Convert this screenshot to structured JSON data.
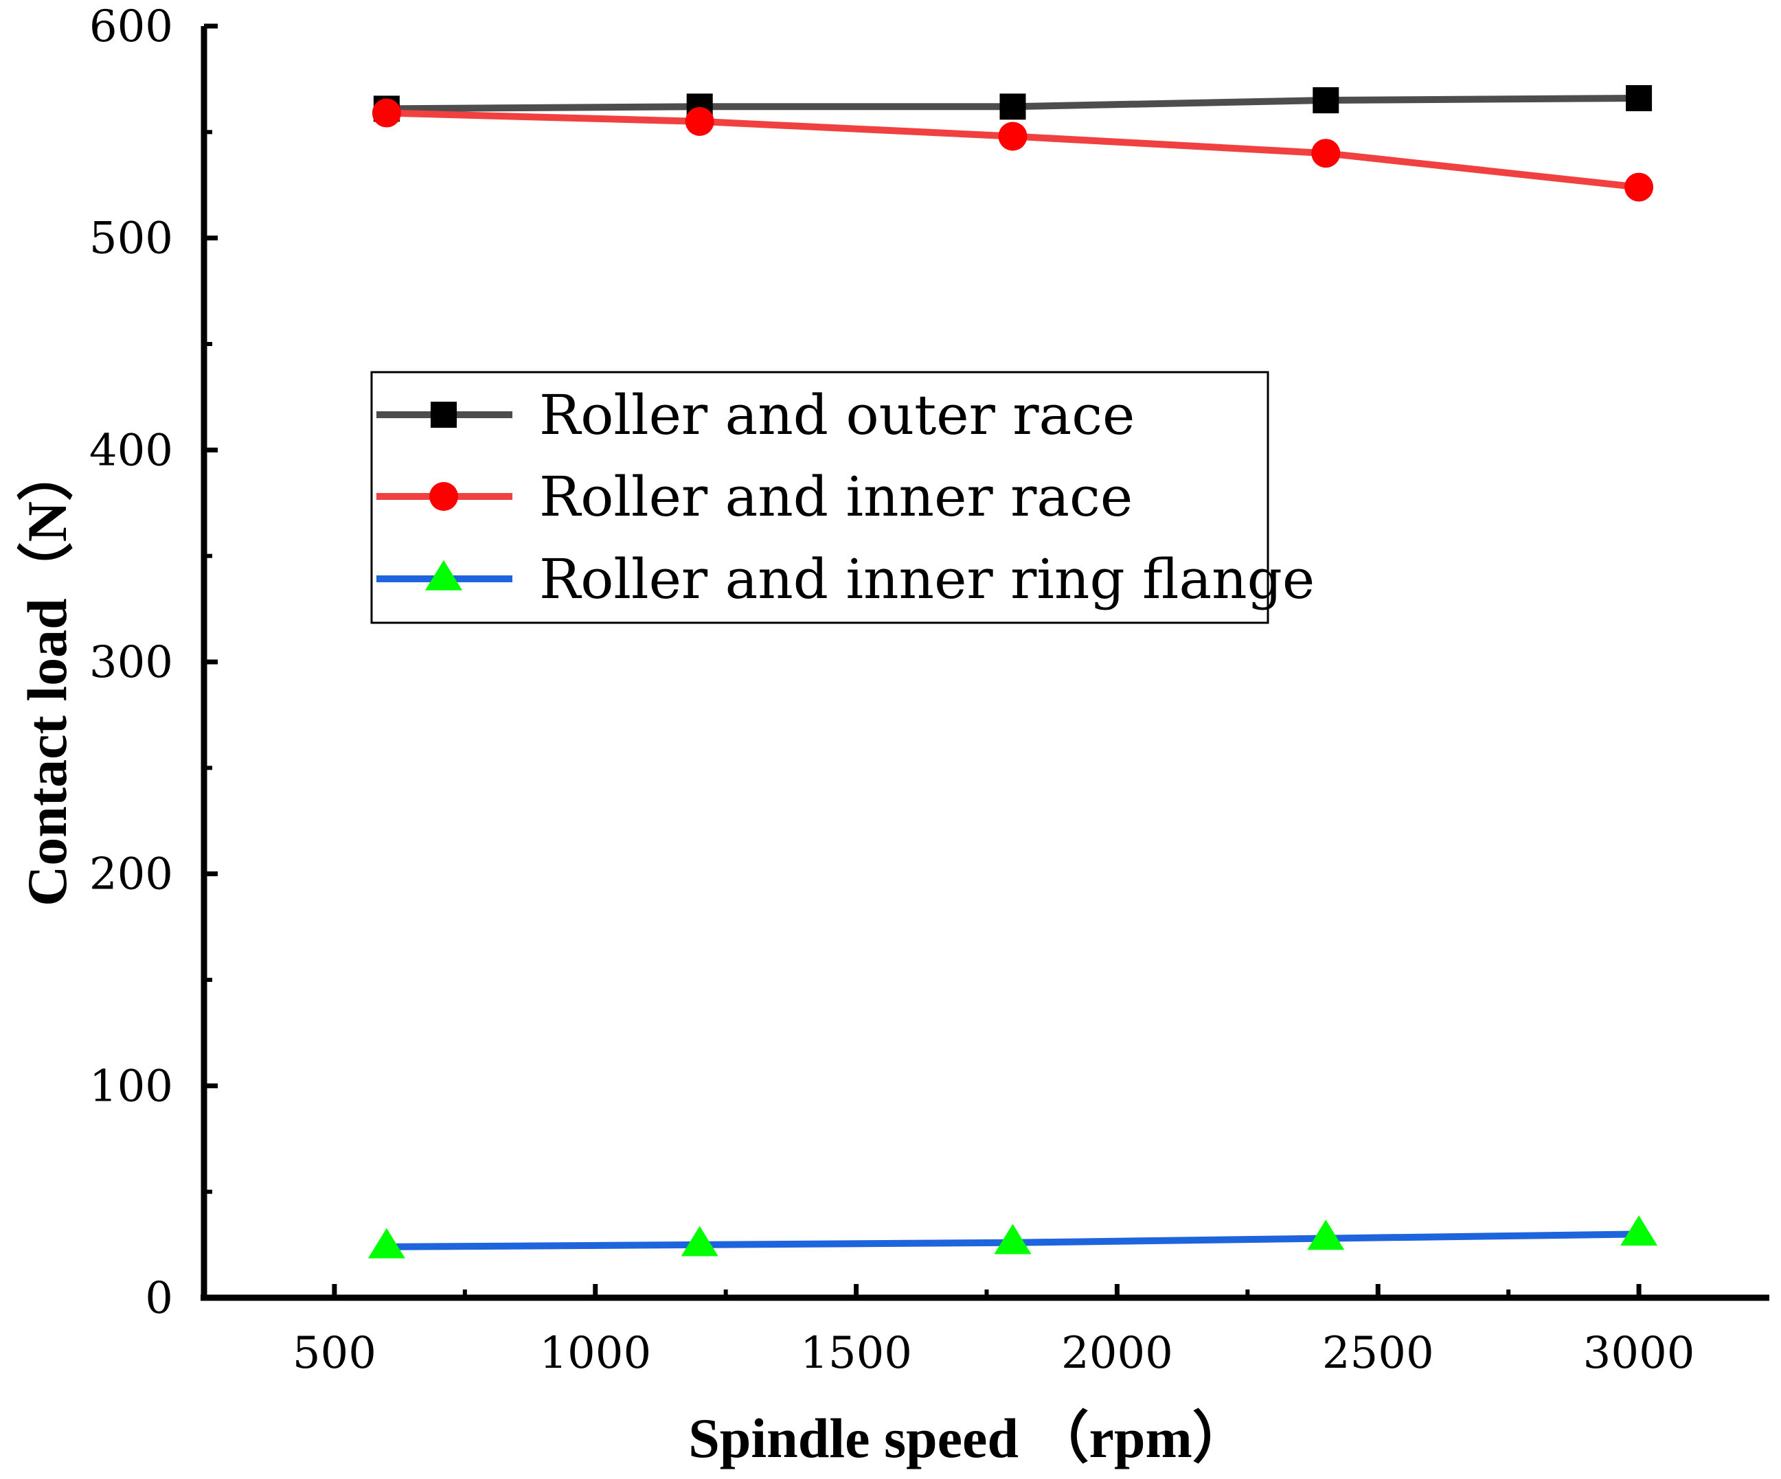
{
  "chart_data": {
    "type": "line",
    "title": "",
    "xlabel": "Spindle speed （rpm）",
    "ylabel": "Contact load（N）",
    "xlim": [
      250,
      3250
    ],
    "ylim": [
      0,
      600
    ],
    "x_ticks": [
      500,
      1000,
      1500,
      2000,
      2500,
      3000
    ],
    "y_ticks": [
      0,
      100,
      200,
      300,
      400,
      500,
      600
    ],
    "grid": false,
    "legend_position": "upper-left-center",
    "x": [
      600,
      1200,
      1800,
      2400,
      3000
    ],
    "series": [
      {
        "name": "Roller and outer race",
        "values": [
          561,
          562,
          562,
          565,
          566
        ],
        "line_color": "#4d4d4d",
        "marker_color": "#000000",
        "marker": "square"
      },
      {
        "name": "Roller and inner race",
        "values": [
          559,
          555,
          548,
          540,
          524
        ],
        "line_color": "#f04040",
        "marker_color": "#ff0000",
        "marker": "circle"
      },
      {
        "name": "Roller and inner ring flange",
        "values": [
          24,
          25,
          26,
          28,
          30
        ],
        "line_color": "#1e64dc",
        "marker_color": "#00ff00",
        "marker": "triangle"
      }
    ]
  }
}
